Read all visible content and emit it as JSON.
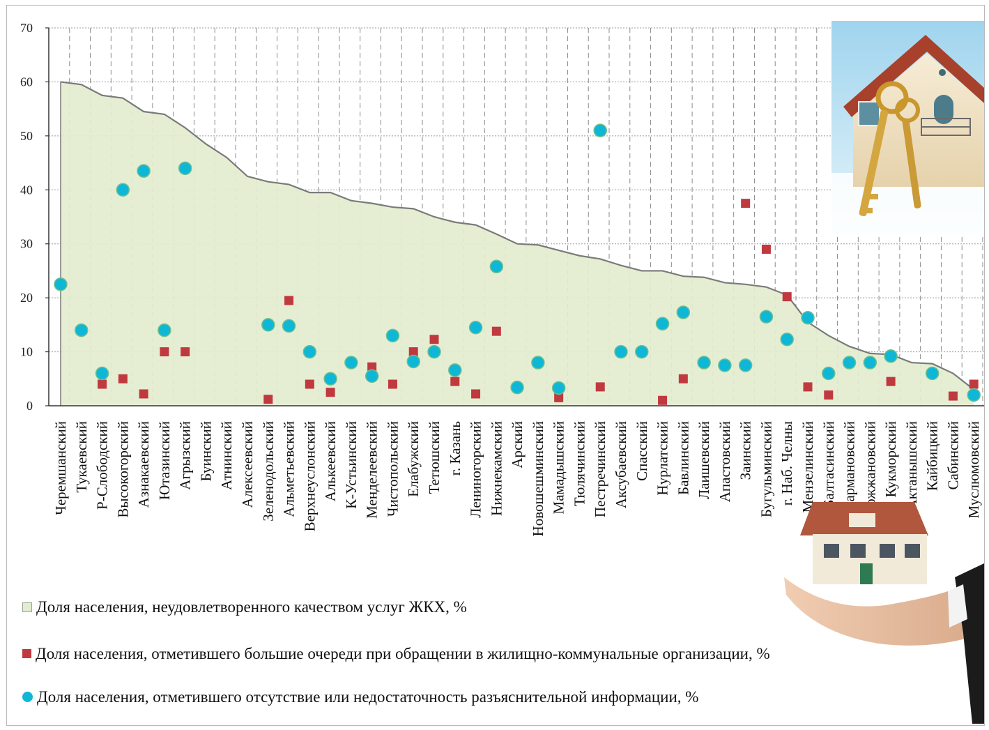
{
  "chart_data": {
    "type": "area+scatter",
    "categories": [
      "Черемшанский",
      "Тукаевский",
      "Р-Слободский",
      "Высокогорский",
      "Азнакаевский",
      "Ютазинский",
      "Агрызский",
      "Буинский",
      "Атнинский",
      "Алексеевский",
      "Зеленодольский",
      "Альметьевский",
      "Верхнеуслонский",
      "Алькеевский",
      "К-Устьинский",
      "Менделеевский",
      "Чистопольский",
      "Елабужский",
      "Тетюшский",
      "г. Казань",
      "Лениногорский",
      "Нижнекамский",
      "Арский",
      "Новошешминский",
      "Мамадышский",
      "Тюлячинский",
      "Пестречинский",
      "Аксубаевский",
      "Спасский",
      "Нурлатский",
      "Бавлинский",
      "Лаишевский",
      "Апастовский",
      "Заинский",
      "Бугульминский",
      "г. Наб. Челны",
      "Мензелинский",
      "Балтасинский",
      "Сармановский",
      "Дрожжановский",
      "Кукморский",
      "Актанышский",
      "Кайбицкий",
      "Сабинский",
      "Муслюмовский"
    ],
    "ylim": [
      0,
      70
    ],
    "yticks": [
      0,
      10,
      20,
      30,
      40,
      50,
      60,
      70
    ],
    "grid": true,
    "series": [
      {
        "name": "Доля населения, неудовлетворенного качеством услуг ЖКХ, %",
        "kind": "area",
        "color": "#e3edcf",
        "line": "#7a7a7a",
        "values": [
          60,
          59.5,
          57.5,
          57,
          54.5,
          54,
          51.5,
          48.5,
          46,
          42.5,
          41.5,
          41,
          39.5,
          39.5,
          38,
          37.5,
          36.8,
          36.5,
          35,
          34,
          33.5,
          31.8,
          30,
          29.8,
          28.8,
          27.8,
          27.2,
          26,
          25,
          25,
          24,
          23.8,
          22.8,
          22.5,
          22,
          20.5,
          15.5,
          13,
          11,
          9.7,
          9.5,
          8,
          7.8,
          6,
          3
        ]
      },
      {
        "name": "Доля населения, отметившего большие очереди при обращении в жилищно-коммунальные организации, %",
        "kind": "square",
        "color": "#c0393f",
        "values": [
          null,
          null,
          4,
          5,
          2.2,
          10,
          10,
          null,
          null,
          null,
          1.2,
          19.5,
          4,
          2.5,
          null,
          7.2,
          4,
          10,
          12.3,
          4.5,
          2.2,
          13.8,
          null,
          null,
          1.5,
          null,
          3.5,
          null,
          null,
          1,
          5,
          null,
          null,
          37.5,
          29,
          20.2,
          3.5,
          2,
          null,
          null,
          4.5,
          null,
          null,
          1.8,
          4
        ]
      },
      {
        "name": "Доля населения, отметившего отсутствие или недостаточность разъяснительной информации, %",
        "kind": "circle",
        "color": "#0fb7d6",
        "values": [
          22.5,
          14,
          6,
          40,
          43.5,
          14,
          44,
          null,
          null,
          null,
          15,
          14.8,
          10,
          5,
          8,
          5.5,
          13,
          8.2,
          10,
          6.6,
          14.5,
          25.8,
          3.4,
          8,
          3.3,
          null,
          51,
          10,
          10,
          15.2,
          17.3,
          8,
          7.5,
          7.5,
          16.5,
          12.3,
          16.3,
          6,
          8,
          8,
          9.2,
          null,
          6,
          null,
          2
        ]
      }
    ]
  }
}
